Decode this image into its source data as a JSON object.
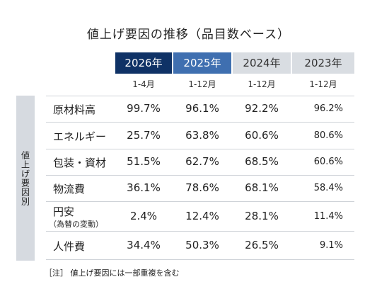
{
  "title": "値上げ要因の推移（品目数ベース）",
  "headers": [
    {
      "year": "2026年",
      "period": "1-4月"
    },
    {
      "year": "2025年",
      "period": "1-12月"
    },
    {
      "year": "2024年",
      "period": "1-12月"
    },
    {
      "year": "2023年",
      "period": "1-12月"
    }
  ],
  "side_label": "値上げ要因別",
  "rows": [
    {
      "label": "原材料高",
      "sublabel": "",
      "values": [
        "99.7%",
        "96.1%",
        "92.2%",
        "96.2%"
      ]
    },
    {
      "label": "エネルギー",
      "sublabel": "",
      "values": [
        "25.7%",
        "63.8%",
        "60.6%",
        "80.6%"
      ]
    },
    {
      "label": "包装・資材",
      "sublabel": "",
      "values": [
        "51.5%",
        "62.7%",
        "68.5%",
        "60.6%"
      ]
    },
    {
      "label": "物流費",
      "sublabel": "",
      "values": [
        "36.1%",
        "78.6%",
        "68.1%",
        "58.4%"
      ]
    },
    {
      "label": "円安",
      "sublabel": "（為替の変動）",
      "values": [
        "2.4%",
        "12.4%",
        "28.1%",
        "11.4%"
      ]
    },
    {
      "label": "人件費",
      "sublabel": "",
      "values": [
        "34.4%",
        "50.3%",
        "26.5%",
        "9.1%"
      ]
    }
  ],
  "note": "［注］ 値上げ要因には一部重複を含む",
  "colors": {
    "header_2026": "#0f3266",
    "header_2025": "#3f6fb0",
    "header_other": "#d9dde2"
  }
}
